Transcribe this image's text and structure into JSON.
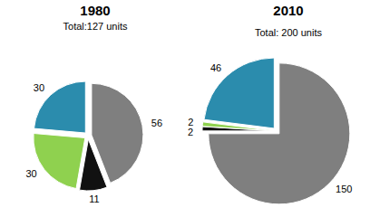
{
  "chart_data": [
    {
      "type": "pie",
      "title": "1980",
      "subtitle": "Total:127 units",
      "values": [
        56,
        11,
        30,
        30
      ],
      "colors": [
        "#7f7f7f",
        "#111111",
        "#8fd14f",
        "#2b8cad"
      ],
      "data_labels": true
    },
    {
      "type": "pie",
      "title": "2010",
      "subtitle": "Total: 200 units",
      "values": [
        150,
        2,
        2,
        46
      ],
      "colors": [
        "#7f7f7f",
        "#111111",
        "#8fd14f",
        "#2b8cad"
      ],
      "data_labels": true
    }
  ]
}
